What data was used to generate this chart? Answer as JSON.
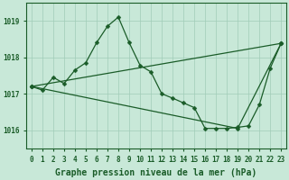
{
  "bg_color": "#c8e8d8",
  "grid_color": "#a0ccb8",
  "line_color": "#1a5c28",
  "marker_color": "#1a5c28",
  "xlabel": "Graphe pression niveau de la mer (hPa)",
  "xlabel_fontsize": 7.0,
  "tick_fontsize": 5.5,
  "ylim": [
    1015.5,
    1019.5
  ],
  "xlim": [
    -0.5,
    23.5
  ],
  "yticks": [
    1016,
    1017,
    1018,
    1019
  ],
  "xticks": [
    0,
    1,
    2,
    3,
    4,
    5,
    6,
    7,
    8,
    9,
    10,
    11,
    12,
    13,
    14,
    15,
    16,
    17,
    18,
    19,
    20,
    21,
    22,
    23
  ],
  "series": [
    {
      "x": [
        0,
        1,
        2,
        3,
        4,
        5,
        6,
        7,
        8,
        9,
        10,
        11,
        12,
        13,
        14,
        15,
        16,
        17,
        18,
        19,
        20,
        21,
        22,
        23
      ],
      "y": [
        1017.2,
        1017.1,
        1017.45,
        1017.28,
        1017.65,
        1017.85,
        1018.4,
        1018.85,
        1019.1,
        1018.4,
        1017.78,
        1017.6,
        1017.0,
        1016.88,
        1016.75,
        1016.62,
        1016.05,
        1016.05,
        1016.05,
        1016.08,
        1016.12,
        1016.7,
        1017.7,
        1018.38
      ]
    },
    {
      "x": [
        0,
        3,
        6,
        9,
        12,
        15,
        18,
        21,
        23
      ],
      "y": [
        1017.2,
        1017.25,
        1017.35,
        1017.5,
        1017.65,
        1017.78,
        1017.9,
        1018.1,
        1018.35
      ]
    },
    {
      "x": [
        0,
        3,
        6,
        9,
        12,
        15,
        18,
        19,
        21,
        23
      ],
      "y": [
        1017.2,
        1017.15,
        1017.05,
        1016.95,
        1016.75,
        1016.55,
        1016.1,
        1016.05,
        1016.55,
        1018.38
      ]
    }
  ]
}
